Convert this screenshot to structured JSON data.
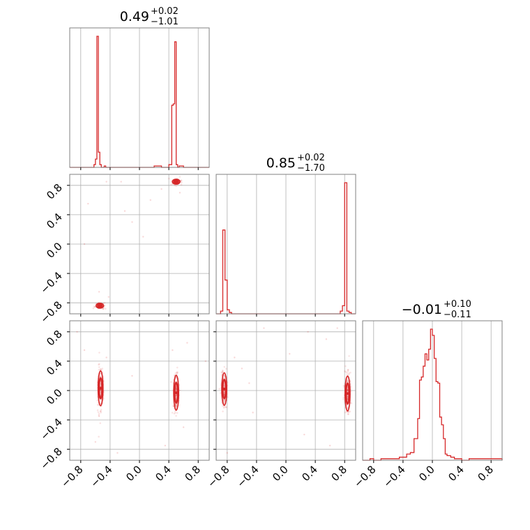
{
  "chart_data": {
    "type": "corner",
    "grid": true,
    "color": "#d62728",
    "axis_range": [
      -0.95,
      0.95
    ],
    "ticks": [
      -0.8,
      -0.4,
      0.0,
      0.4,
      0.8
    ],
    "tick_labels": [
      "−0.8",
      "−0.4",
      "0.0",
      "0.4",
      "0.8"
    ],
    "titles": [
      {
        "value": "0.49",
        "plus": "+0.02",
        "minus": "−1.01"
      },
      {
        "value": "0.85",
        "plus": "+0.02",
        "minus": "−1.70"
      },
      {
        "value": "−0.01",
        "plus": "+0.10",
        "minus": "−0.11"
      }
    ],
    "histograms": [
      {
        "bins": [
          -0.95,
          -0.62,
          -0.6,
          -0.58,
          -0.56,
          -0.54,
          -0.52,
          -0.5,
          -0.48,
          -0.46,
          -0.44,
          0.2,
          0.25,
          0.3,
          0.4,
          0.42,
          0.44,
          0.46,
          0.48,
          0.5,
          0.52,
          0.54,
          0.56,
          0.6,
          0.95
        ],
        "counts": [
          0,
          2,
          6,
          95,
          11,
          2,
          0,
          0,
          1,
          0,
          0,
          1,
          1,
          0,
          2,
          2,
          45,
          46,
          91,
          2,
          0,
          1,
          1,
          0
        ]
      },
      {
        "bins": [
          -0.95,
          -0.89,
          -0.86,
          -0.83,
          -0.8,
          -0.77,
          -0.74,
          -0.7,
          0.7,
          0.74,
          0.77,
          0.8,
          0.83,
          0.86,
          0.89,
          0.95
        ],
        "counts": [
          0,
          2,
          62,
          25,
          3,
          1,
          0,
          0,
          0,
          2,
          6,
          97,
          2,
          1,
          0
        ]
      },
      {
        "bins": [
          -0.95,
          -0.85,
          -0.8,
          -0.7,
          -0.6,
          -0.5,
          -0.45,
          -0.4,
          -0.35,
          -0.3,
          -0.25,
          -0.2,
          -0.175,
          -0.15,
          -0.125,
          -0.1,
          -0.075,
          -0.05,
          -0.025,
          0.0,
          0.025,
          0.05,
          0.075,
          0.1,
          0.125,
          0.15,
          0.175,
          0.2,
          0.25,
          0.3,
          0.35,
          0.4,
          0.5,
          0.6,
          0.95
        ],
        "counts": [
          0,
          1,
          0,
          1,
          1,
          1,
          2,
          2,
          4,
          5,
          14,
          27,
          52,
          54,
          61,
          69,
          65,
          72,
          85,
          81,
          66,
          51,
          50,
          28,
          23,
          14,
          4,
          3,
          2,
          1,
          1,
          0,
          1,
          1
        ]
      }
    ],
    "scatter_panels": [
      {
        "x_param": 0,
        "y_param": 1,
        "clusters": [
          {
            "x": 0.5,
            "y": 0.85,
            "sx": 0.03,
            "sy": 0.02,
            "n": 120,
            "contour": true
          },
          {
            "x": -0.54,
            "y": -0.84,
            "sx": 0.03,
            "sy": 0.02,
            "n": 90,
            "contour": true
          }
        ],
        "outliers": [
          [
            -0.25,
            0.85
          ],
          [
            -0.45,
            0.85
          ],
          [
            -0.75,
            0.0
          ],
          [
            -0.1,
            0.3
          ],
          [
            0.05,
            0.1
          ],
          [
            -0.2,
            0.45
          ],
          [
            0.3,
            0.75
          ],
          [
            -0.55,
            -0.65
          ],
          [
            -0.42,
            -0.72
          ],
          [
            0.55,
            0.7
          ],
          [
            -0.7,
            0.55
          ],
          [
            0.15,
            0.6
          ]
        ]
      },
      {
        "x_param": 0,
        "y_param": 2,
        "clusters": [
          {
            "x": -0.53,
            "y": 0.03,
            "sx": 0.02,
            "sy": 0.14,
            "n": 170,
            "contour": true
          },
          {
            "x": 0.5,
            "y": -0.03,
            "sx": 0.02,
            "sy": 0.14,
            "n": 170,
            "contour": true
          }
        ],
        "outliers": [
          [
            -0.85,
            0.8
          ],
          [
            -0.75,
            0.55
          ],
          [
            -0.6,
            -0.7
          ],
          [
            0.65,
            0.65
          ],
          [
            0.35,
            -0.75
          ],
          [
            -0.1,
            0.2
          ],
          [
            -0.3,
            -0.85
          ],
          [
            0.9,
            0.4
          ],
          [
            0.6,
            -0.5
          ],
          [
            -0.45,
            0.45
          ],
          [
            0.45,
            0.55
          ],
          [
            -0.55,
            -0.35
          ]
        ]
      },
      {
        "x_param": 1,
        "y_param": 2,
        "clusters": [
          {
            "x": -0.84,
            "y": 0.02,
            "sx": 0.02,
            "sy": 0.13,
            "n": 150,
            "contour": true
          },
          {
            "x": 0.84,
            "y": -0.04,
            "sx": 0.02,
            "sy": 0.14,
            "n": 170,
            "contour": true
          }
        ],
        "outliers": [
          [
            -0.7,
            0.45
          ],
          [
            -0.6,
            0.3
          ],
          [
            -0.3,
            0.85
          ],
          [
            0.3,
            0.8
          ],
          [
            0.55,
            0.7
          ],
          [
            -0.45,
            -0.3
          ],
          [
            0.6,
            -0.75
          ],
          [
            0.05,
            0.5
          ],
          [
            -0.8,
            -0.85
          ],
          [
            0.25,
            -0.6
          ],
          [
            -0.5,
            0.1
          ],
          [
            0.7,
            0.85
          ]
        ]
      }
    ]
  }
}
